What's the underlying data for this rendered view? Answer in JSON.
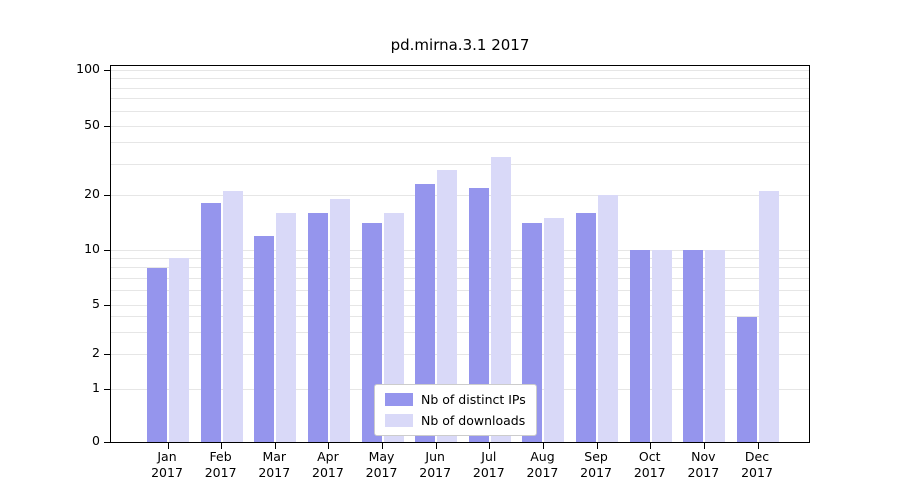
{
  "chart_data": {
    "type": "bar",
    "title": "pd.mirna.3.1 2017",
    "year": "2017",
    "categories": [
      "Jan",
      "Feb",
      "Mar",
      "Apr",
      "May",
      "Jun",
      "Jul",
      "Aug",
      "Sep",
      "Oct",
      "Nov",
      "Dec"
    ],
    "series": [
      {
        "name": "Nb of distinct IPs",
        "color": "#9595ed",
        "values": [
          8,
          18,
          12,
          16,
          14,
          23,
          22,
          14,
          16,
          10,
          10,
          4
        ]
      },
      {
        "name": "Nb of downloads",
        "color": "#d9d9f8",
        "values": [
          9,
          21,
          16,
          19,
          16,
          28,
          33,
          15,
          20,
          10,
          10,
          21
        ]
      }
    ],
    "y_axis": {
      "scale": "log",
      "range": [
        0,
        100
      ],
      "ticks": [
        0,
        1,
        2,
        5,
        10,
        20,
        50,
        100
      ],
      "tick_labels": [
        "0",
        "1",
        "2",
        "5",
        "10",
        "20",
        "50",
        "100"
      ],
      "gridlines": [
        1,
        2,
        3,
        4,
        5,
        6,
        7,
        8,
        9,
        10,
        20,
        30,
        40,
        50,
        60,
        70,
        80,
        90,
        100
      ]
    },
    "x_axis": {
      "label": ""
    },
    "legend": {
      "position": "bottom-center",
      "entries": [
        "Nb of distinct IPs",
        "Nb of downloads"
      ]
    },
    "colors": {
      "bar_distinct_ips": "#9595ed",
      "bar_downloads": "#d9d9f8",
      "gridline": "#e6e6e6",
      "axis": "#000000",
      "background": "#ffffff"
    }
  }
}
